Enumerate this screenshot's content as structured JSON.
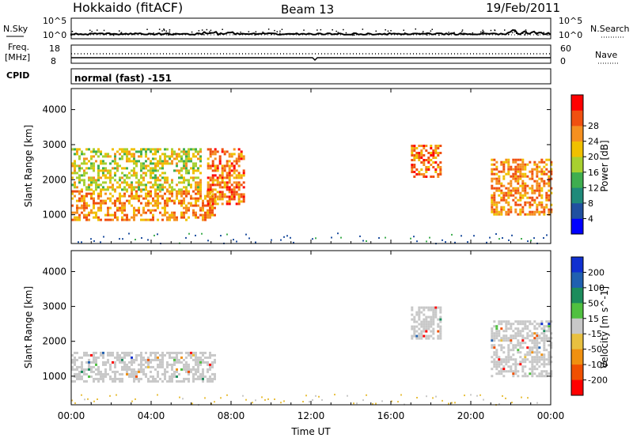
{
  "header": {
    "station": "Hokkaido (fitACF)",
    "beam": "Beam 13",
    "date": "19/Feb/2011"
  },
  "strip": {
    "nsky_label": "N.Sky",
    "nsearch_label": "N.Search",
    "nsky_ticks": [
      "10^5",
      "10^0"
    ],
    "freq_label_1": "Freq.",
    "freq_label_2": "[MHz]",
    "freq_ticks": [
      "18",
      "8"
    ],
    "nave_label": "Nave",
    "nave_ticks": [
      "60",
      "0"
    ],
    "cpid_label": "CPID",
    "cpid_value": "normal (fast) -151"
  },
  "chart_data": [
    {
      "type": "heatmap",
      "name": "Power",
      "ylabel": "Slant Range [km]",
      "xlabel": "Time UT",
      "ylim": [
        180,
        4600
      ],
      "xlim_hours": [
        0,
        24
      ],
      "yticks": [
        1000,
        2000,
        3000,
        4000
      ],
      "xtick_labels": [
        "00:00",
        "04:00",
        "08:00",
        "12:00",
        "16:00",
        "20:00",
        "00:00"
      ],
      "colorbar": {
        "label": "Power [dB]",
        "ticks": [
          "4",
          "8",
          "12",
          "16",
          "20",
          "24",
          "28"
        ],
        "colors": [
          "#0000ff",
          "#2050a0",
          "#1f8a7a",
          "#3fae4f",
          "#a8d030",
          "#f0c000",
          "#f59020",
          "#f05010",
          "#ff0000"
        ]
      },
      "regions": [
        {
          "t0": 0.0,
          "t1": 7.2,
          "r0": 850,
          "r1": 1700,
          "level": 24
        },
        {
          "t0": 0.0,
          "t1": 6.5,
          "r0": 1700,
          "r1": 2900,
          "level": 18
        },
        {
          "t0": 6.8,
          "t1": 8.6,
          "r0": 1300,
          "r1": 2900,
          "level": 26
        },
        {
          "t0": 17.0,
          "t1": 18.5,
          "r0": 2100,
          "r1": 3000,
          "level": 26
        },
        {
          "t0": 21.0,
          "t1": 24.0,
          "r0": 1000,
          "r1": 2600,
          "level": 24
        }
      ]
    },
    {
      "type": "heatmap",
      "name": "Velocity",
      "ylabel": "Slant Range [km]",
      "xlabel": "Time UT",
      "ylim": [
        180,
        4600
      ],
      "xlim_hours": [
        0,
        24
      ],
      "yticks": [
        1000,
        2000,
        3000,
        4000
      ],
      "xtick_labels": [
        "00:00",
        "04:00",
        "08:00",
        "12:00",
        "16:00",
        "20:00",
        "00:00"
      ],
      "colorbar": {
        "label": "Velocity [m s^-1]",
        "ticks": [
          "200",
          "100",
          "50",
          "15",
          "-15",
          "-50",
          "-100",
          "-200"
        ],
        "colors": [
          "#1030d0",
          "#2060b0",
          "#1c8c5c",
          "#50c040",
          "#c8c8c8",
          "#e8c040",
          "#f09010",
          "#f05000",
          "#ff0000"
        ]
      },
      "regions": [
        {
          "t0": 0.0,
          "t1": 7.2,
          "r0": 850,
          "r1": 1700,
          "level": 0
        },
        {
          "t0": 17.0,
          "t1": 18.5,
          "r0": 2100,
          "r1": 3000,
          "level": 0
        },
        {
          "t0": 21.0,
          "t1": 24.0,
          "r0": 1000,
          "r1": 2600,
          "level": 0
        }
      ]
    }
  ]
}
